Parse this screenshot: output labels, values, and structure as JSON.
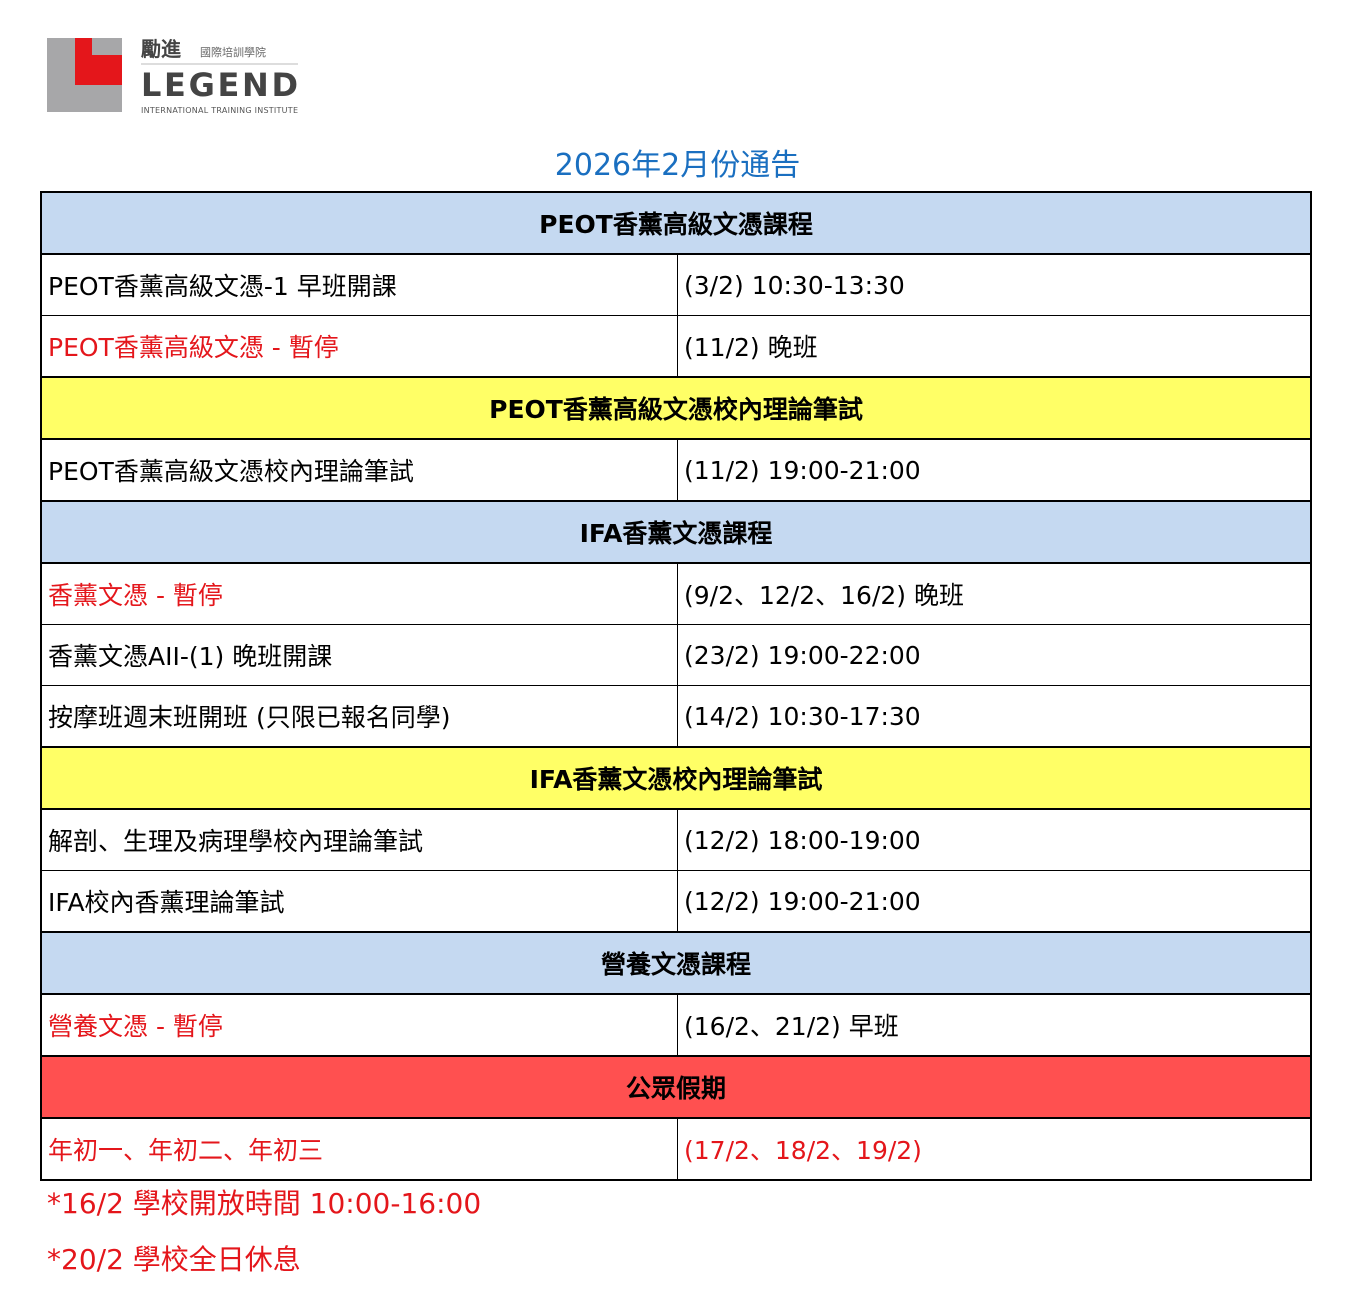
{
  "logo": {
    "chinese": "勵進",
    "chinese_sub": "國際培訓學院",
    "english": "LEGEND",
    "english_sub": "INTERNATIONAL TRAINING INSTITUTE",
    "colors": {
      "red": "#e4161b",
      "gray": "#a7a7a9"
    }
  },
  "title": "2026年2月份通告",
  "colors": {
    "blue_header": "#c5d9f1",
    "yellow_header": "#ffff66",
    "red_header": "#ff5050",
    "red_text": "#e4161b",
    "title": "#1a6fc0"
  },
  "sections": [
    {
      "header": "PEOT香薰高級文憑課程",
      "color": "blue",
      "rows": [
        {
          "item": "PEOT香薰高級文憑-1 早班開課",
          "time": "(3/2) 10:30-13:30",
          "red": false
        },
        {
          "item": "PEOT香薰高級文憑 - 暫停",
          "time": "(11/2) 晚班",
          "red_item": true
        }
      ]
    },
    {
      "header": "PEOT香薰高級文憑校內理論筆試",
      "color": "yellow",
      "rows": [
        {
          "item": "PEOT香薰高級文憑校內理論筆試",
          "time": "(11/2) 19:00-21:00"
        }
      ]
    },
    {
      "header": "IFA香薰文憑課程",
      "color": "blue",
      "rows": [
        {
          "item": "香薰文憑 - 暫停",
          "time": "(9/2、12/2、16/2) 晚班",
          "red_item": true
        },
        {
          "item": "香薰文憑AII-(1) 晚班開課",
          "time": "(23/2) 19:00-22:00"
        },
        {
          "item": "按摩班週末班開班 (只限已報名同學)",
          "time": "(14/2) 10:30-17:30"
        }
      ]
    },
    {
      "header": "IFA香薰文憑校內理論筆試",
      "color": "yellow",
      "rows": [
        {
          "item": "解剖、生理及病理學校內理論筆試",
          "time": "(12/2) 18:00-19:00"
        },
        {
          "item": "IFA校內香薰理論筆試",
          "time": "(12/2) 19:00-21:00"
        }
      ]
    },
    {
      "header": "營養文憑課程",
      "color": "blue",
      "rows": [
        {
          "item": "營養文憑 - 暫停",
          "time": "(16/2、21/2) 早班",
          "red_item": true
        }
      ]
    },
    {
      "header": "公眾假期",
      "color": "red",
      "rows": [
        {
          "item": "年初一、年初二、年初三",
          "time": "(17/2、18/2、19/2)",
          "red_item": true,
          "red_time": true
        }
      ]
    }
  ],
  "notes": [
    "*16/2 學校開放時間 10:00-16:00",
    "*20/2 學校全日休息"
  ]
}
